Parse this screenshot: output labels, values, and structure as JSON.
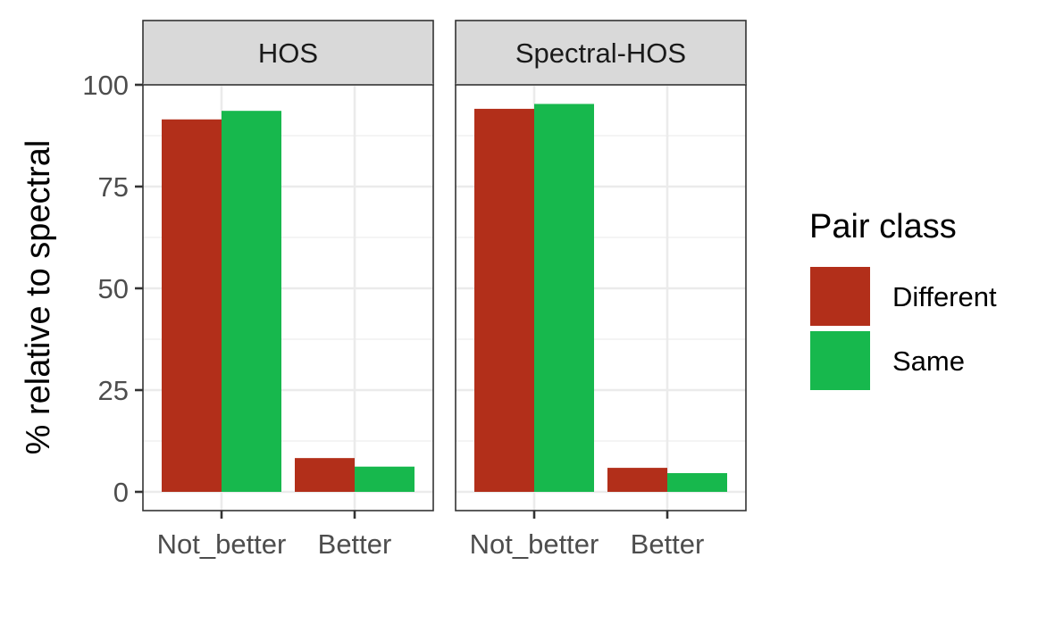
{
  "chart_data": {
    "type": "bar",
    "layout": "faceted",
    "ylabel": "% relative to spectral",
    "xlabel": "",
    "ylim": [
      0,
      100
    ],
    "yticks": [
      0,
      25,
      50,
      75,
      100
    ],
    "categories": [
      "Not_better",
      "Better"
    ],
    "grid": true,
    "legend": {
      "title": "Pair class",
      "position": "right",
      "entries": [
        "Different",
        "Same"
      ]
    },
    "colors": {
      "Different": "#b22f1a",
      "Same": "#17b84d"
    },
    "panels": [
      {
        "title": "HOS",
        "series": [
          {
            "name": "Different",
            "values": [
              91.5,
              8.3
            ]
          },
          {
            "name": "Same",
            "values": [
              93.6,
              6.2
            ]
          }
        ]
      },
      {
        "title": "Spectral-HOS",
        "series": [
          {
            "name": "Different",
            "values": [
              94.1,
              5.9
            ]
          },
          {
            "name": "Same",
            "values": [
              95.3,
              4.6
            ]
          }
        ]
      }
    ]
  }
}
